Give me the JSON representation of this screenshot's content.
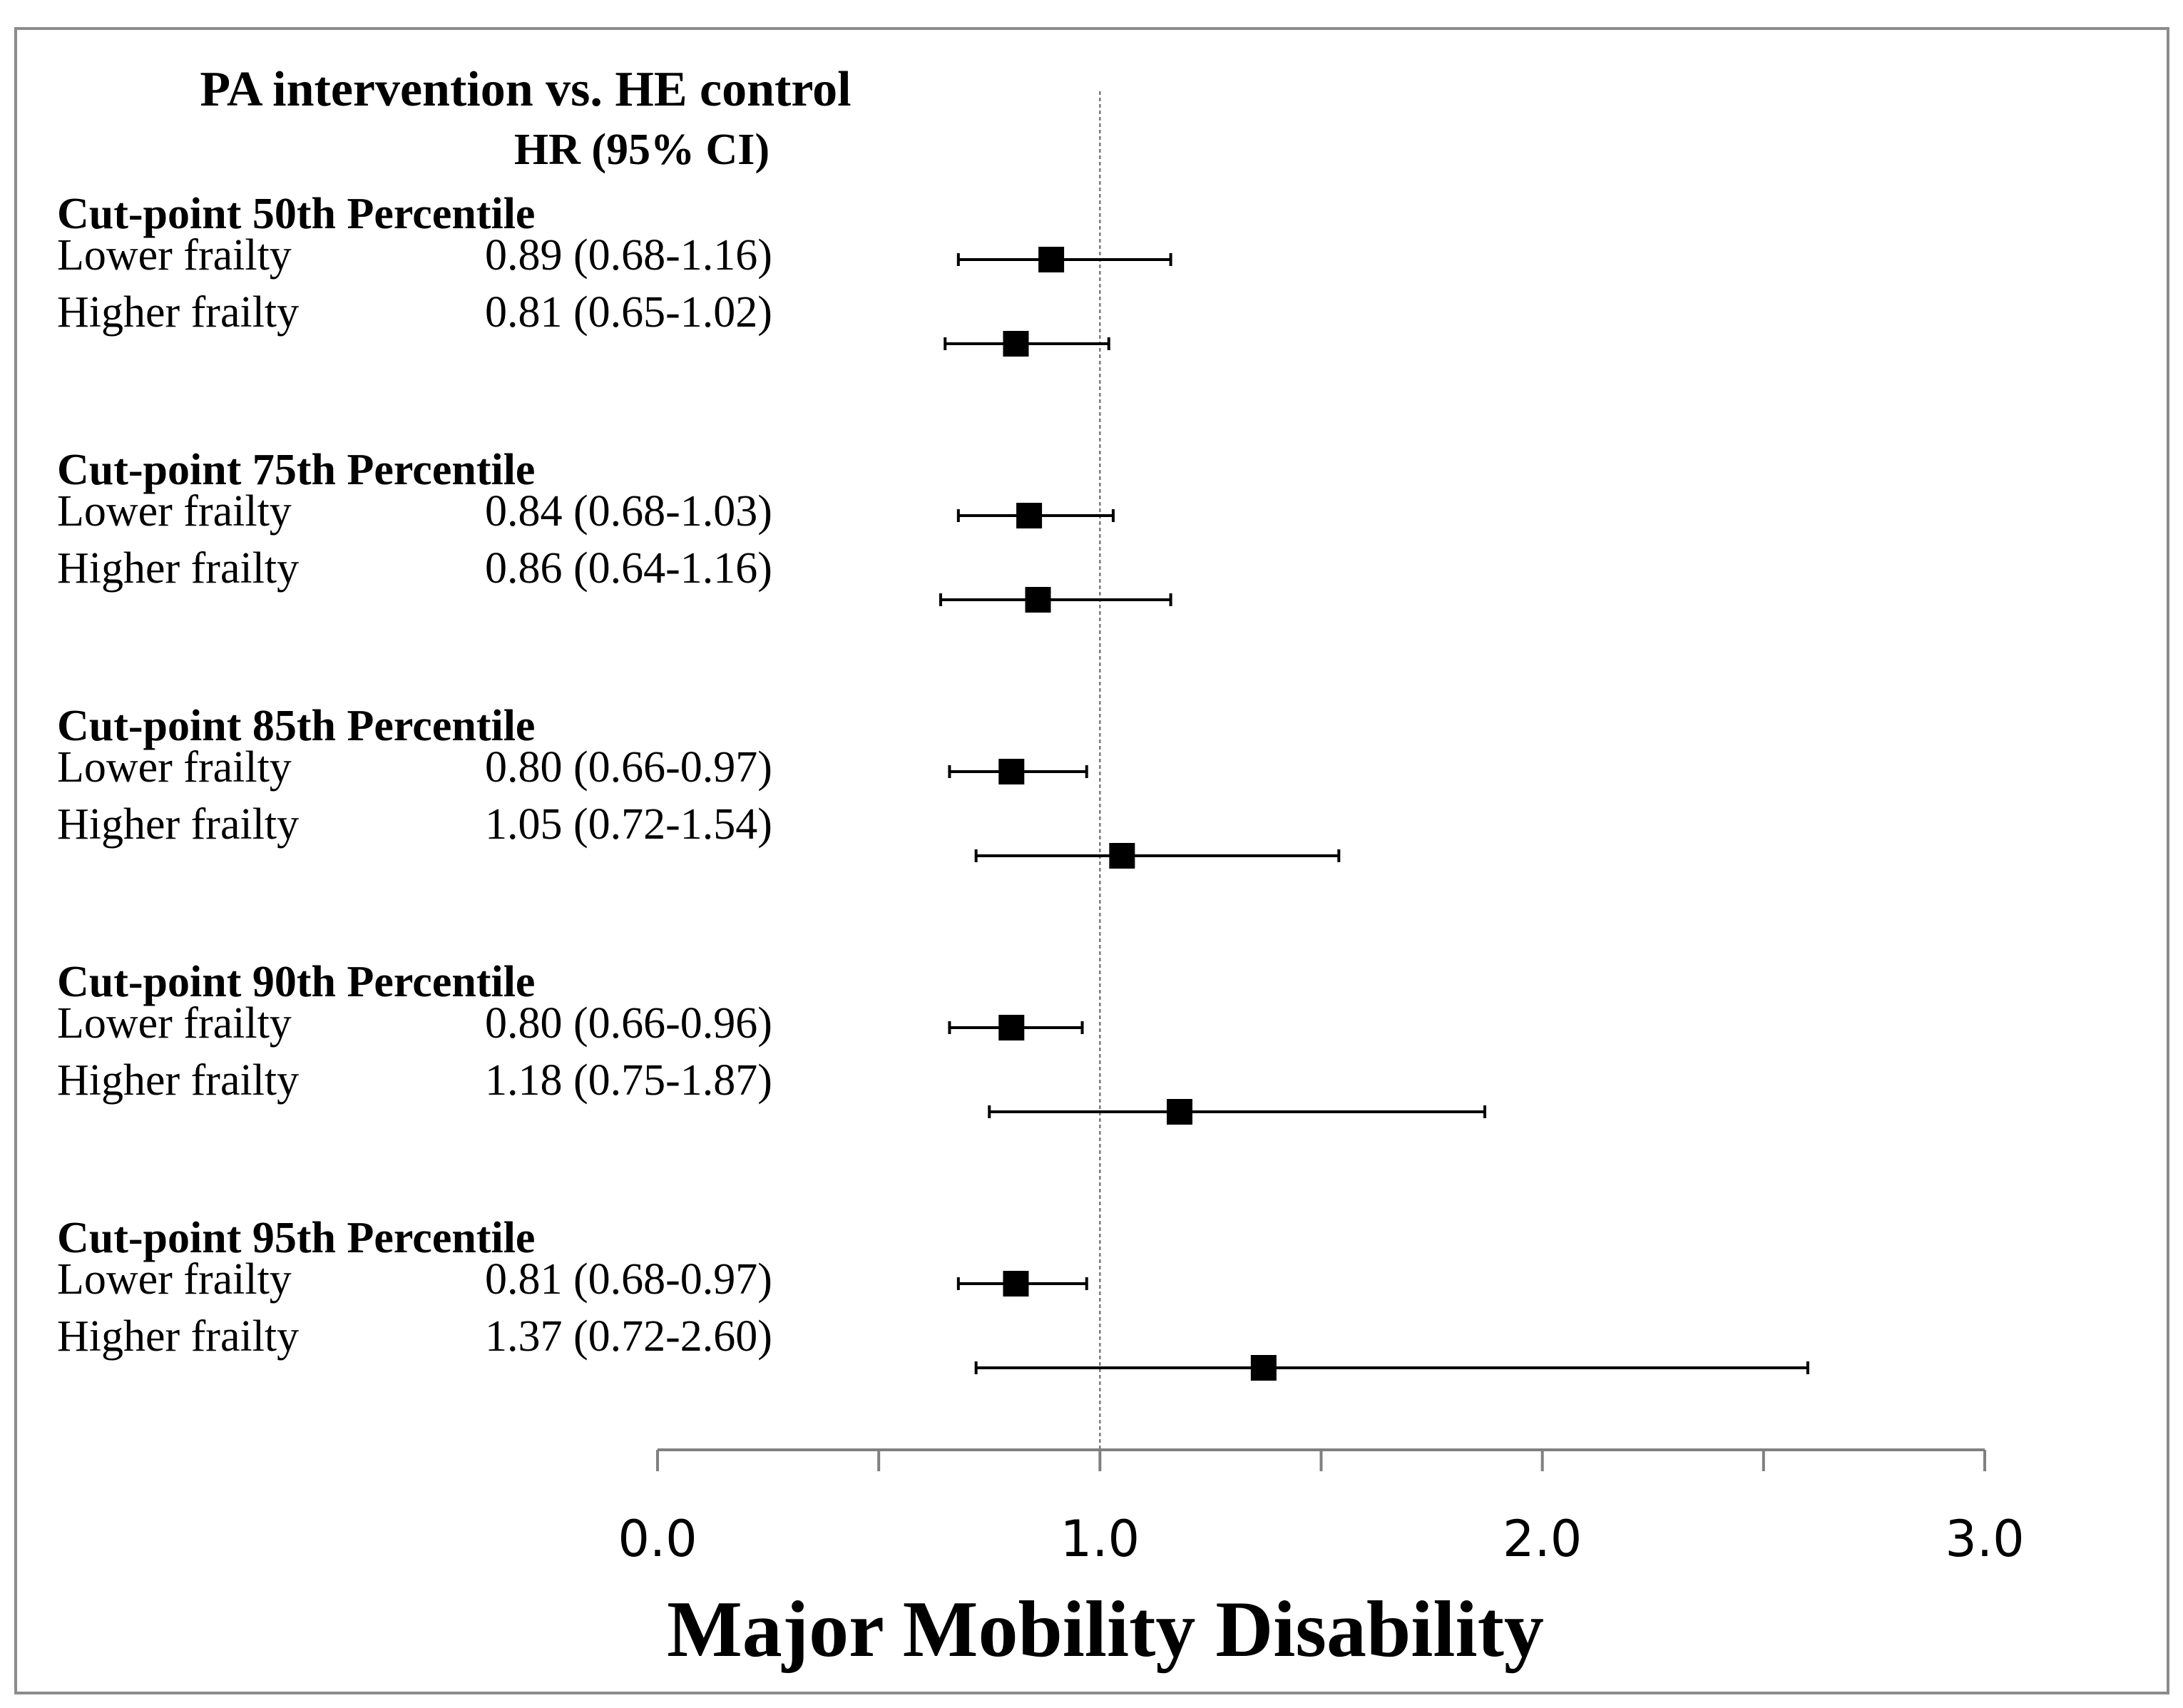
{
  "chart_data": {
    "type": "forest",
    "title": "PA intervention vs. HE control",
    "subtitle": "HR (95% CI)",
    "xlabel": "Major Mobility Disability",
    "xlim": [
      0.0,
      3.0
    ],
    "x_ticks_minor": [
      0.0,
      0.5,
      1.0,
      1.5,
      2.0,
      2.5,
      3.0
    ],
    "x_tick_labels": [
      {
        "value": 0.0,
        "label": "0.0"
      },
      {
        "value": 1.0,
        "label": "1.0"
      },
      {
        "value": 2.0,
        "label": "2.0"
      },
      {
        "value": 3.0,
        "label": "3.0"
      }
    ],
    "reference_line": 1.0,
    "groups": [
      {
        "label": "Cut-point 50th Percentile",
        "rows": [
          {
            "label": "Lower frailty",
            "text": "0.89 (0.68-1.16)",
            "hr": 0.89,
            "lo": 0.68,
            "hi": 1.16
          },
          {
            "label": "Higher frailty",
            "text": "0.81 (0.65-1.02)",
            "hr": 0.81,
            "lo": 0.65,
            "hi": 1.02
          }
        ]
      },
      {
        "label": "Cut-point 75th Percentile",
        "rows": [
          {
            "label": "Lower frailty",
            "text": "0.84 (0.68-1.03)",
            "hr": 0.84,
            "lo": 0.68,
            "hi": 1.03
          },
          {
            "label": "Higher frailty",
            "text": "0.86 (0.64-1.16)",
            "hr": 0.86,
            "lo": 0.64,
            "hi": 1.16
          }
        ]
      },
      {
        "label": "Cut-point 85th Percentile",
        "rows": [
          {
            "label": "Lower frailty",
            "text": "0.80 (0.66-0.97)",
            "hr": 0.8,
            "lo": 0.66,
            "hi": 0.97
          },
          {
            "label": "Higher frailty",
            "text": "1.05 (0.72-1.54)",
            "hr": 1.05,
            "lo": 0.72,
            "hi": 1.54
          }
        ]
      },
      {
        "label": "Cut-point 90th Percentile",
        "rows": [
          {
            "label": "Lower frailty",
            "text": "0.80 (0.66-0.96)",
            "hr": 0.8,
            "lo": 0.66,
            "hi": 0.96
          },
          {
            "label": "Higher frailty",
            "text": "1.18 (0.75-1.87)",
            "hr": 1.18,
            "lo": 0.75,
            "hi": 1.87
          }
        ]
      },
      {
        "label": "Cut-point 95th Percentile",
        "rows": [
          {
            "label": "Lower frailty",
            "text": "0.81 (0.68-0.97)",
            "hr": 0.81,
            "lo": 0.68,
            "hi": 0.97
          },
          {
            "label": "Higher frailty",
            "text": "1.37 (0.72-2.60)",
            "hr": 1.37,
            "lo": 0.72,
            "hi": 2.6
          }
        ]
      }
    ],
    "colors": {
      "marker": "#000000",
      "axis": "#808080",
      "frame": "#8c8c8c",
      "text": "#000000"
    }
  }
}
